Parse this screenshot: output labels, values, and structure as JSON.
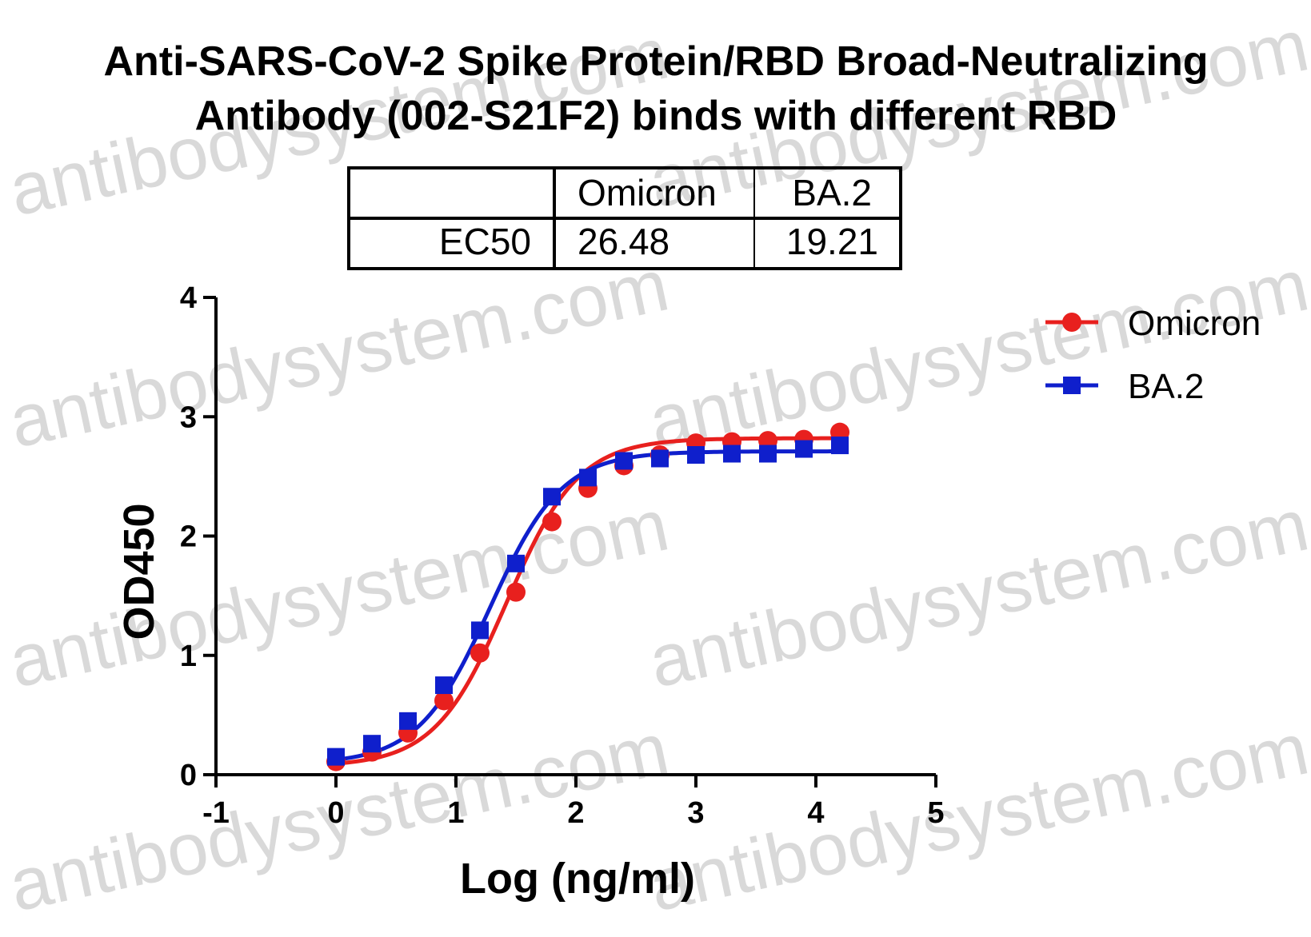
{
  "chart_data": {
    "type": "line",
    "title": [
      "Anti-SARS-CoV-2 Spike Protein/RBD Broad-Neutralizing",
      "Antibody (002-S21F2) binds with different RBD"
    ],
    "xlabel": "Log (ng/ml)",
    "ylabel": "OD450",
    "xlim": [
      -1,
      5
    ],
    "ylim": [
      0,
      4
    ],
    "xticks": [
      -1,
      0,
      1,
      2,
      3,
      4,
      5
    ],
    "yticks": [
      0,
      1,
      2,
      3,
      4
    ],
    "legend_position": "top-right",
    "series": [
      {
        "name": "Omicron",
        "color": "#e8201e",
        "marker": "circle",
        "x": [
          0,
          0.3,
          0.6,
          0.9,
          1.2,
          1.5,
          1.8,
          2.1,
          2.4,
          2.7,
          3.0,
          3.3,
          3.6,
          3.9,
          4.2
        ],
        "y": [
          0.11,
          0.19,
          0.35,
          0.62,
          1.02,
          1.53,
          2.12,
          2.4,
          2.59,
          2.68,
          2.78,
          2.79,
          2.8,
          2.81,
          2.87
        ],
        "fit": {
          "bottom": 0.07,
          "top": 2.82,
          "logec50": 1.423,
          "hill": 1.45
        }
      },
      {
        "name": "BA.2",
        "color": "#0f1fcc",
        "marker": "square",
        "x": [
          0,
          0.3,
          0.6,
          0.9,
          1.2,
          1.5,
          1.8,
          2.1,
          2.4,
          2.7,
          3.0,
          3.3,
          3.6,
          3.9,
          4.2
        ],
        "y": [
          0.15,
          0.26,
          0.45,
          0.75,
          1.21,
          1.77,
          2.33,
          2.49,
          2.63,
          2.65,
          2.68,
          2.69,
          2.69,
          2.73,
          2.76
        ],
        "fit": {
          "bottom": 0.09,
          "top": 2.71,
          "logec50": 1.284,
          "hill": 1.45
        }
      }
    ],
    "ec50_table": {
      "columns": [
        "",
        "Omicron",
        "BA.2"
      ],
      "rows": [
        {
          "label": "EC50",
          "values": [
            "26.48",
            "19.21"
          ]
        }
      ]
    }
  },
  "watermark": "antibodysystem.com"
}
